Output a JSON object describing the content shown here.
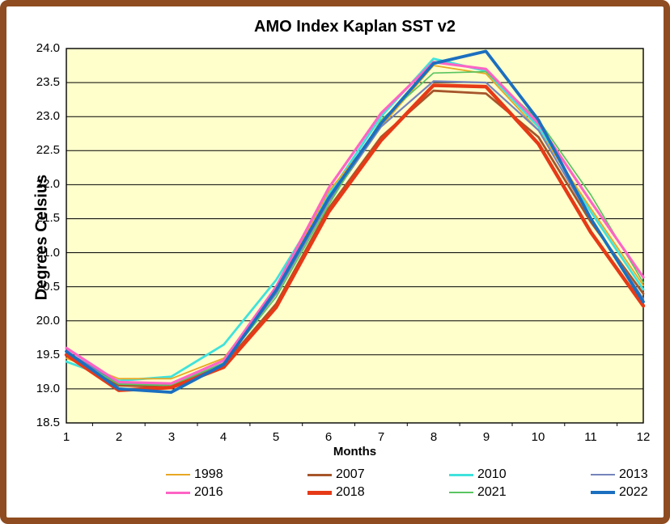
{
  "frame": {
    "border_color": "#8E4C20",
    "background": "#FFFFFF"
  },
  "chart_data": {
    "type": "line",
    "title": "AMO Index Kaplan SST v2",
    "xlabel": "Months",
    "ylabel": "Degrees Celsius",
    "x": [
      1,
      2,
      3,
      4,
      5,
      6,
      7,
      8,
      9,
      10,
      11,
      12
    ],
    "ylim": [
      18.5,
      24.0
    ],
    "ytick_step": 0.5,
    "plot_bg": "#FFFFCC",
    "grid": true,
    "gridline_color": "#000000",
    "legend_position": "bottom",
    "series": [
      {
        "name": "1998",
        "color": "#E8A823",
        "width": 1.8,
        "values": [
          19.45,
          19.15,
          19.15,
          19.45,
          20.45,
          21.9,
          22.85,
          23.75,
          23.63,
          22.8,
          21.65,
          20.52
        ]
      },
      {
        "name": "2007",
        "color": "#A6562B",
        "width": 2.8,
        "values": [
          19.5,
          19.05,
          19.03,
          19.35,
          20.25,
          21.65,
          22.7,
          23.38,
          23.34,
          22.7,
          21.45,
          20.4
        ]
      },
      {
        "name": "2010",
        "color": "#3FE2DC",
        "width": 2.8,
        "values": [
          19.4,
          19.12,
          19.18,
          19.65,
          20.6,
          21.85,
          23.0,
          23.85,
          23.67,
          22.85,
          21.6,
          20.46
        ]
      },
      {
        "name": "2013",
        "color": "#7484BC",
        "width": 2.2,
        "values": [
          19.55,
          19.08,
          19.05,
          19.38,
          20.4,
          21.75,
          22.85,
          23.52,
          23.5,
          22.8,
          21.5,
          20.32
        ]
      },
      {
        "name": "2016",
        "color": "#FF63C5",
        "width": 3.2,
        "values": [
          19.6,
          19.1,
          19.08,
          19.42,
          20.5,
          21.95,
          23.05,
          23.8,
          23.7,
          22.9,
          21.75,
          20.64
        ]
      },
      {
        "name": "2018",
        "color": "#E63A17",
        "width": 4.5,
        "values": [
          19.5,
          18.98,
          19.02,
          19.32,
          20.2,
          21.6,
          22.65,
          23.46,
          23.44,
          22.6,
          21.3,
          20.22
        ]
      },
      {
        "name": "2021",
        "color": "#5BC561",
        "width": 1.7,
        "values": [
          19.5,
          19.07,
          19.05,
          19.38,
          20.35,
          21.7,
          22.95,
          23.64,
          23.66,
          22.95,
          21.85,
          20.56
        ]
      },
      {
        "name": "2022",
        "color": "#1B6FBF",
        "width": 3.8,
        "values": [
          19.55,
          19.0,
          18.95,
          19.36,
          20.45,
          21.8,
          22.9,
          23.78,
          23.96,
          22.95,
          21.5,
          20.28
        ]
      }
    ],
    "draw_order": [
      "2010",
      "1998",
      "2007",
      "2013",
      "2021",
      "2016",
      "2018",
      "2022"
    ]
  },
  "axes": {
    "y_ticks": [
      "24.0",
      "23.5",
      "23.0",
      "22.5",
      "22.0",
      "21.5",
      "21.0",
      "20.5",
      "20.0",
      "19.5",
      "19.0",
      "18.5"
    ],
    "x_ticks": [
      "1",
      "2",
      "3",
      "4",
      "5",
      "6",
      "7",
      "8",
      "9",
      "10",
      "11",
      "12"
    ]
  }
}
